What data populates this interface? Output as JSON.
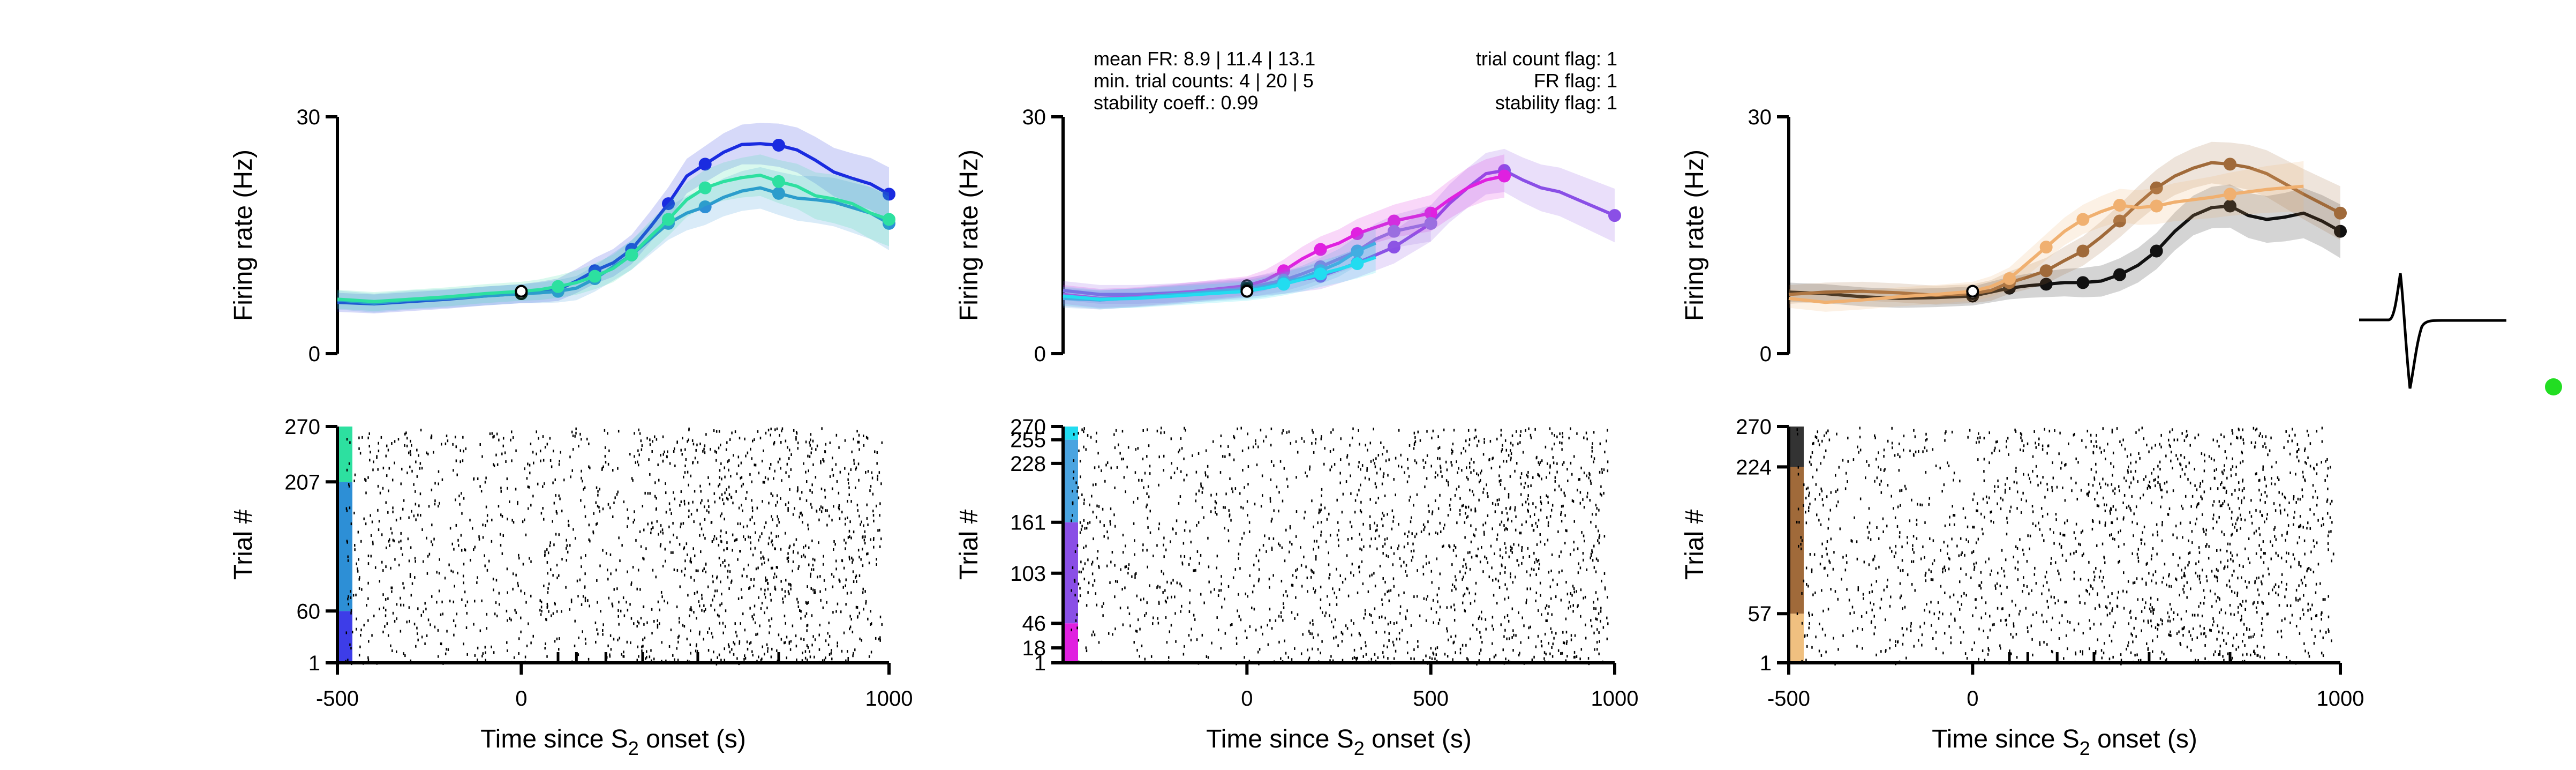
{
  "figure": {
    "stats_left": [
      "mean FR: 8.9 | 11.4 | 13.1",
      "min. trial counts: 4 | 20 | 5",
      "stability coeff.: 0.99"
    ],
    "stats_right": [
      "trial count flag: 1",
      "FR flag: 1",
      "stability flag: 1"
    ],
    "status_dot_color": "#22dd22",
    "icons": [
      "waveform-icon",
      "status-dot-icon"
    ]
  },
  "chart_data": [
    {
      "type": "line",
      "ylabel": "Firing rate (Hz)",
      "ylim": [
        0,
        30
      ],
      "y_ticks": [
        "0",
        "30"
      ],
      "xlim": [
        -500,
        1000
      ],
      "series": [
        {
          "color": "#1a2be0",
          "x": [
            -500,
            -400,
            -300,
            -200,
            -100,
            0,
            50,
            100,
            150,
            200,
            250,
            300,
            350,
            400,
            450,
            500,
            550,
            600,
            650,
            700,
            750,
            800,
            850,
            900,
            950,
            1000
          ],
          "y": [
            6.5,
            6.3,
            6.6,
            6.9,
            7.3,
            7.6,
            7.8,
            8.1,
            9.2,
            10.5,
            11.5,
            13.2,
            16.0,
            19.0,
            22.5,
            24.0,
            25.5,
            26.5,
            26.6,
            26.4,
            25.8,
            24.5,
            23.0,
            22.2,
            21.5,
            20.2
          ]
        },
        {
          "color": "#2d8fd6",
          "x": [
            -500,
            -400,
            -300,
            -200,
            -100,
            0,
            50,
            100,
            150,
            200,
            250,
            300,
            350,
            400,
            450,
            500,
            550,
            600,
            650,
            700,
            750,
            800,
            850,
            900,
            950,
            1000
          ],
          "y": [
            6.8,
            6.4,
            6.8,
            7.0,
            7.3,
            7.6,
            7.7,
            7.9,
            8.3,
            9.5,
            11.0,
            12.5,
            14.5,
            16.5,
            17.8,
            18.6,
            19.8,
            20.6,
            21.0,
            20.3,
            19.7,
            19.5,
            19.2,
            18.5,
            17.8,
            16.5
          ]
        },
        {
          "color": "#2de0a0",
          "x": [
            -500,
            -400,
            -300,
            -200,
            -100,
            0,
            50,
            100,
            150,
            200,
            250,
            300,
            350,
            400,
            450,
            500,
            550,
            600,
            650,
            700,
            750,
            800,
            850,
            900,
            950,
            1000
          ],
          "y": [
            6.9,
            6.6,
            6.9,
            7.2,
            7.6,
            7.9,
            8.1,
            8.5,
            9.0,
            9.8,
            10.8,
            12.5,
            14.8,
            17.0,
            19.5,
            21.0,
            21.8,
            22.3,
            22.6,
            21.8,
            21.2,
            20.0,
            19.6,
            19.0,
            17.8,
            17.0
          ]
        }
      ],
      "raster": {
        "ylabel": "Trial #",
        "y_ticks": [
          "1",
          "60",
          "207",
          "270"
        ],
        "trial_bands": [
          {
            "from": 1,
            "to": 60,
            "color": "#3d3de8"
          },
          {
            "from": 60,
            "to": 207,
            "color": "#2d8fd6"
          },
          {
            "from": 207,
            "to": 270,
            "color": "#2de0a0"
          }
        ]
      },
      "x_ticks": [
        "-500",
        "0",
        "1000"
      ],
      "x_minor_ticks": [
        100,
        150,
        230,
        330,
        480,
        700
      ],
      "xlabel": "Time since S",
      "xlabel_sub": "2",
      "xlabel_tail": " onset (s)"
    },
    {
      "type": "line",
      "ylabel": "Firing rate (Hz)",
      "ylim": [
        0,
        30
      ],
      "y_ticks": [
        "0",
        "30"
      ],
      "xlim": [
        -500,
        1000
      ],
      "series": [
        {
          "color": "#8a4fe6",
          "x": [
            -500,
            -400,
            -300,
            -200,
            -100,
            0,
            100,
            200,
            300,
            400,
            500,
            550,
            600,
            650,
            700,
            750,
            800,
            850,
            900,
            950,
            1000
          ],
          "y": [
            8.0,
            7.5,
            7.5,
            7.7,
            8.0,
            8.4,
            9.0,
            9.8,
            11.5,
            13.5,
            16.5,
            19.0,
            21.0,
            22.8,
            23.2,
            22.0,
            21.0,
            20.5,
            19.5,
            18.5,
            17.5
          ]
        },
        {
          "color": "#e020e0",
          "x": [
            -500,
            -400,
            -300,
            -200,
            -100,
            0,
            50,
            100,
            150,
            200,
            250,
            300,
            350,
            400,
            450,
            500,
            550,
            600,
            650,
            700
          ],
          "y": [
            7.5,
            7.0,
            7.2,
            7.6,
            8.1,
            8.6,
            9.3,
            10.5,
            12.0,
            13.2,
            14.0,
            15.2,
            16.0,
            16.8,
            17.3,
            17.8,
            19.5,
            21.0,
            22.0,
            22.5
          ]
        },
        {
          "color": "#9a6fe0",
          "x": [
            -500,
            -400,
            -300,
            -200,
            -100,
            0,
            50,
            100,
            150,
            200,
            250,
            300,
            350,
            400,
            450,
            500
          ],
          "y": [
            7.2,
            6.8,
            7.1,
            7.4,
            7.9,
            8.3,
            8.8,
            9.3,
            10.1,
            11.0,
            12.0,
            13.0,
            14.5,
            15.5,
            16.0,
            16.5
          ]
        },
        {
          "color": "#4aa4e0",
          "x": [
            -500,
            -400,
            -300,
            -200,
            -100,
            0,
            50,
            100,
            150,
            200,
            250,
            300,
            350
          ],
          "y": [
            7.0,
            6.8,
            7.1,
            7.5,
            7.8,
            8.1,
            8.5,
            9.0,
            9.6,
            10.5,
            11.5,
            13.0,
            14.0
          ]
        },
        {
          "color": "#22dcf0",
          "x": [
            -500,
            -400,
            -300,
            -200,
            -100,
            0,
            50,
            100,
            150,
            200,
            250,
            300,
            350
          ],
          "y": [
            7.3,
            6.9,
            7.0,
            7.3,
            7.6,
            7.9,
            8.3,
            8.8,
            9.4,
            10.1,
            10.7,
            11.4,
            12.2
          ]
        }
      ],
      "raster": {
        "ylabel": "Trial #",
        "y_ticks": [
          "1",
          "18",
          "46",
          "103",
          "161",
          "228",
          "255",
          "270"
        ],
        "trial_bands": [
          {
            "from": 1,
            "to": 46,
            "color": "#e020e0"
          },
          {
            "from": 46,
            "to": 161,
            "color": "#8a4fe6"
          },
          {
            "from": 161,
            "to": 255,
            "color": "#4aa4e0"
          },
          {
            "from": 255,
            "to": 270,
            "color": "#22dcf0"
          }
        ]
      },
      "x_ticks": [
        "0",
        "500",
        "1000"
      ],
      "x_minor_ticks": [],
      "xlabel": "Time since S",
      "xlabel_sub": "2",
      "xlabel_tail": " onset (s)"
    },
    {
      "type": "line",
      "ylabel": "Firing rate (Hz)",
      "ylim": [
        0,
        30
      ],
      "y_ticks": [
        "0",
        "30"
      ],
      "xlim": [
        -500,
        1000
      ],
      "series": [
        {
          "color": "#111111",
          "x": [
            -500,
            -400,
            -300,
            -200,
            -100,
            0,
            50,
            100,
            150,
            200,
            250,
            300,
            350,
            400,
            450,
            500,
            550,
            600,
            650,
            700,
            750,
            800,
            850,
            900,
            950,
            1000
          ],
          "y": [
            7.8,
            7.6,
            7.2,
            7.0,
            7.1,
            7.3,
            7.8,
            8.3,
            8.6,
            8.8,
            9.0,
            9.0,
            9.2,
            10.0,
            11.2,
            13.0,
            15.5,
            17.5,
            18.5,
            18.7,
            17.5,
            17.0,
            17.3,
            17.8,
            16.8,
            15.5
          ]
        },
        {
          "color": "#a06a3a",
          "x": [
            -500,
            -400,
            -300,
            -200,
            -100,
            0,
            50,
            100,
            150,
            200,
            250,
            300,
            350,
            400,
            450,
            500,
            550,
            600,
            650,
            700,
            750,
            800,
            850,
            900,
            950,
            1000
          ],
          "y": [
            7.5,
            7.8,
            7.9,
            7.7,
            7.4,
            7.6,
            8.0,
            9.0,
            9.7,
            10.5,
            11.8,
            13.0,
            14.8,
            16.8,
            19.0,
            21.0,
            22.5,
            23.5,
            24.2,
            24.0,
            23.6,
            22.8,
            21.5,
            20.2,
            19.0,
            17.8
          ]
        },
        {
          "color": "#f0b070",
          "x": [
            -500,
            -400,
            -300,
            -200,
            -100,
            0,
            50,
            100,
            150,
            200,
            250,
            300,
            350,
            400,
            450,
            500,
            550,
            600,
            650,
            700,
            750,
            800,
            850,
            900
          ],
          "y": [
            7.0,
            6.5,
            6.8,
            7.2,
            7.5,
            7.9,
            8.5,
            9.5,
            11.5,
            13.5,
            15.5,
            17.0,
            18.0,
            18.8,
            18.5,
            18.7,
            19.2,
            19.5,
            19.8,
            20.2,
            20.5,
            20.8,
            21.0,
            21.2
          ]
        }
      ],
      "raster": {
        "ylabel": "Trial #",
        "y_ticks": [
          "1",
          "57",
          "224",
          "270"
        ],
        "trial_bands": [
          {
            "from": 1,
            "to": 57,
            "color": "#f0c080"
          },
          {
            "from": 57,
            "to": 224,
            "color": "#a06a3a"
          },
          {
            "from": 224,
            "to": 270,
            "color": "#333333"
          }
        ]
      },
      "x_ticks": [
        "-500",
        "0",
        "1000"
      ],
      "x_minor_ticks": [
        100,
        150,
        230,
        330,
        480,
        700
      ],
      "xlabel": "Time since S",
      "xlabel_sub": "2",
      "xlabel_tail": " onset (s)"
    }
  ]
}
